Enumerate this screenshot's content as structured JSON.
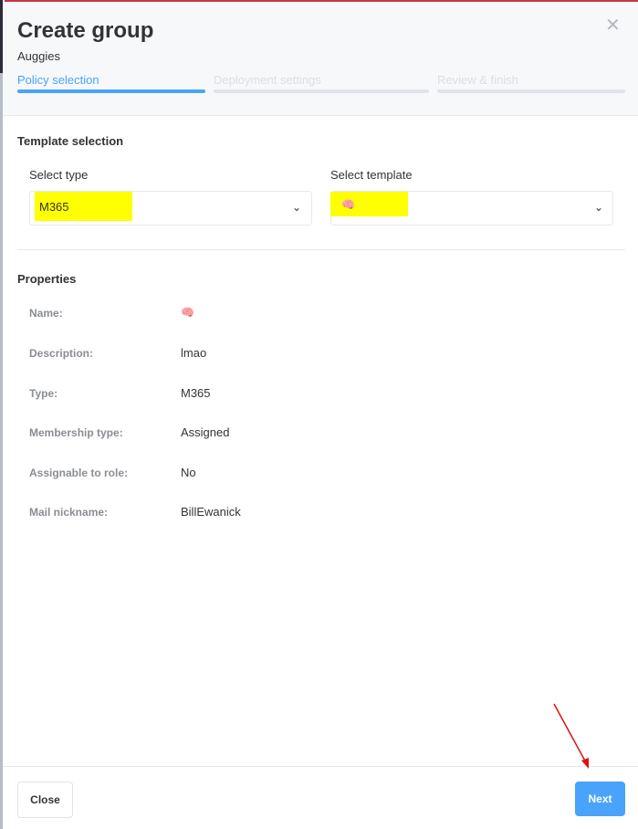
{
  "dialog": {
    "title": "Create group",
    "subtitle": "Auggies"
  },
  "steps": [
    {
      "label": "Policy selection",
      "active": true
    },
    {
      "label": "Deployment settings",
      "active": false
    },
    {
      "label": "Review & finish",
      "active": false
    }
  ],
  "template_selection": {
    "heading": "Template selection",
    "type_label": "Select type",
    "type_value": "M365",
    "template_label": "Select template",
    "template_value": "🧠"
  },
  "properties": {
    "heading": "Properties",
    "rows": [
      {
        "label": "Name:",
        "value": "🧠"
      },
      {
        "label": "Description:",
        "value": "lmao"
      },
      {
        "label": "Type:",
        "value": "M365"
      },
      {
        "label": "Membership type:",
        "value": "Assigned"
      },
      {
        "label": "Assignable to role:",
        "value": "No"
      },
      {
        "label": "Mail nickname:",
        "value": "BillEwanick"
      }
    ]
  },
  "footer": {
    "close_label": "Close",
    "next_label": "Next"
  },
  "colors": {
    "accent": "#4aa3fb",
    "highlight": "#ffff00",
    "annotation_arrow": "#e01010"
  }
}
